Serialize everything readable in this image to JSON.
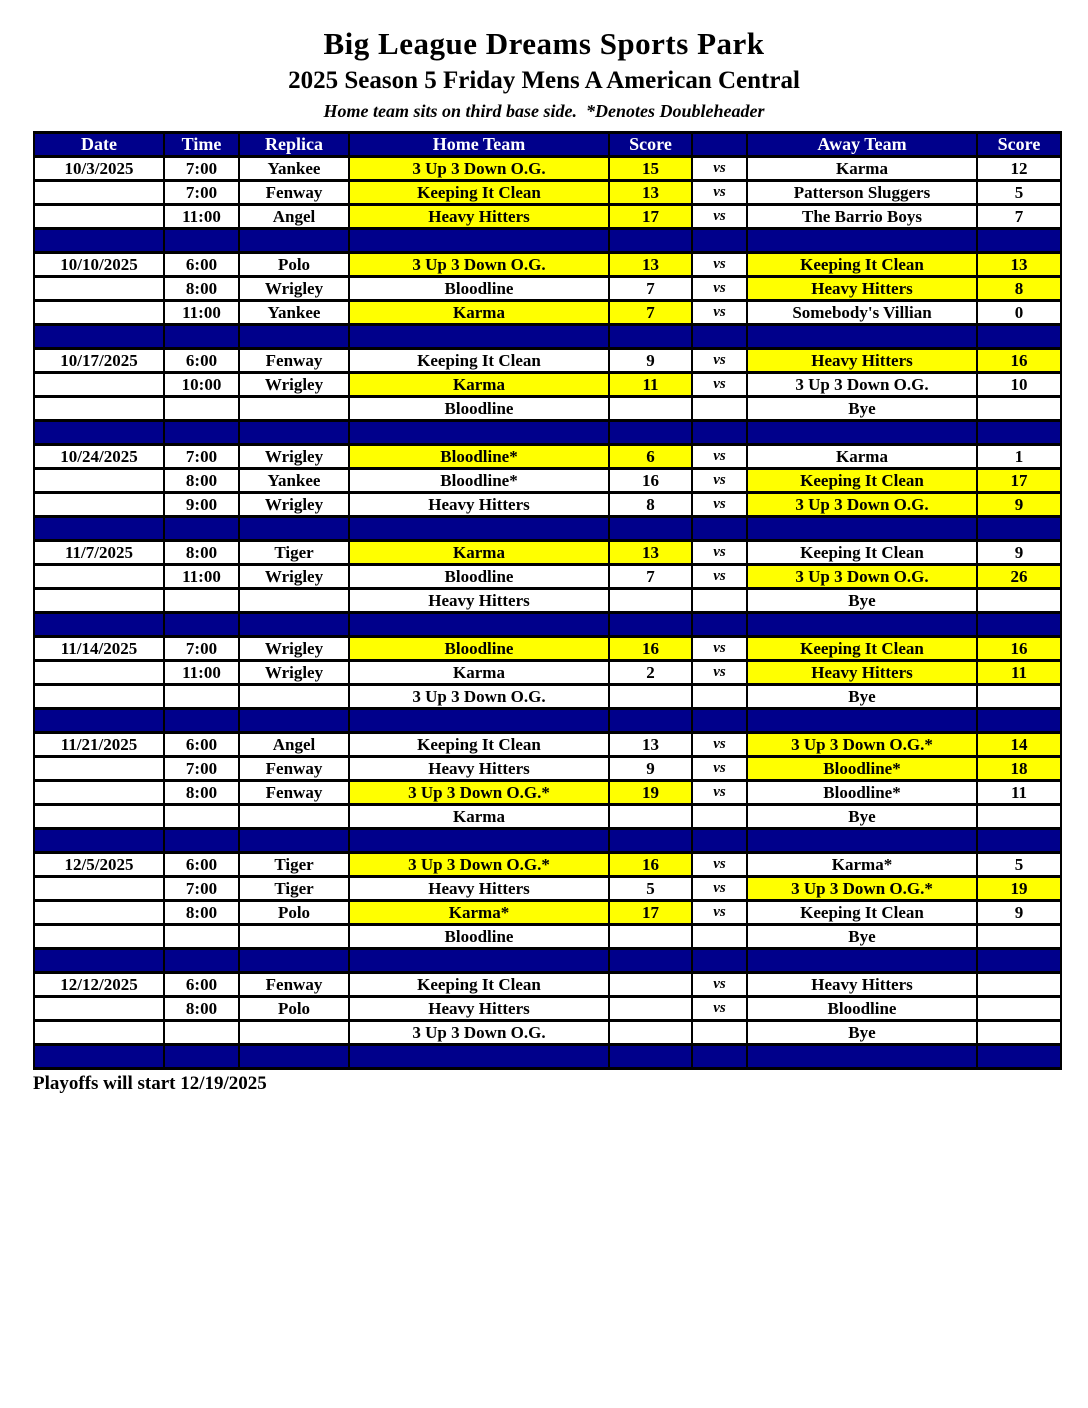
{
  "page": {
    "title": "Big League Dreams Sports Park",
    "subtitle": "2025 Season 5 Friday Mens A American Central",
    "note": "Home team sits on third base side.  *Denotes Doubleheader",
    "footer": "Playoffs will start 12/19/2025"
  },
  "colors": {
    "navy": "#00008B",
    "yellow": "#FFFF00",
    "header_text": "#FFFFFF",
    "row_bg": "#FFFFFF",
    "border": "#000000",
    "body_text": "#000000"
  },
  "table": {
    "headers": [
      "Date",
      "Time",
      "Replica",
      "Home Team",
      "Score",
      "",
      "Away Team",
      "Score"
    ],
    "vs_label": "vs",
    "groups": [
      {
        "date": "10/3/2025",
        "games": [
          {
            "time": "7:00",
            "replica": "Yankee",
            "home": "3 Up 3 Down O.G.",
            "hs": "15",
            "vs": "vs",
            "away": "Karma",
            "as": "12",
            "hlh": true,
            "hla": false
          },
          {
            "time": "7:00",
            "replica": "Fenway",
            "home": "Keeping It Clean",
            "hs": "13",
            "vs": "vs",
            "away": "Patterson Sluggers",
            "as": "5",
            "hlh": true,
            "hla": false
          },
          {
            "time": "11:00",
            "replica": "Angel",
            "home": "Heavy Hitters",
            "hs": "17",
            "vs": "vs",
            "away": "The Barrio Boys",
            "as": "7",
            "hlh": true,
            "hla": false
          }
        ]
      },
      {
        "date": "10/10/2025",
        "games": [
          {
            "time": "6:00",
            "replica": "Polo",
            "home": "3 Up 3 Down O.G.",
            "hs": "13",
            "vs": "vs",
            "away": "Keeping It Clean",
            "as": "13",
            "hlh": true,
            "hla": true
          },
          {
            "time": "8:00",
            "replica": "Wrigley",
            "home": "Bloodline",
            "hs": "7",
            "vs": "vs",
            "away": "Heavy Hitters",
            "as": "8",
            "hlh": false,
            "hla": true
          },
          {
            "time": "11:00",
            "replica": "Yankee",
            "home": "Karma",
            "hs": "7",
            "vs": "vs",
            "away": "Somebody's Villian",
            "as": "0",
            "hlh": true,
            "hla": false
          }
        ]
      },
      {
        "date": "10/17/2025",
        "games": [
          {
            "time": "6:00",
            "replica": "Fenway",
            "home": "Keeping It Clean",
            "hs": "9",
            "vs": "vs",
            "away": "Heavy Hitters",
            "as": "16",
            "hlh": false,
            "hla": true
          },
          {
            "time": "10:00",
            "replica": "Wrigley",
            "home": "Karma",
            "hs": "11",
            "vs": "vs",
            "away": "3 Up 3 Down O.G.",
            "as": "10",
            "hlh": true,
            "hla": false
          },
          {
            "time": "",
            "replica": "",
            "home": "Bloodline",
            "hs": "",
            "vs": "",
            "away": "Bye",
            "as": "",
            "hlh": false,
            "hla": false
          }
        ]
      },
      {
        "date": "10/24/2025",
        "games": [
          {
            "time": "7:00",
            "replica": "Wrigley",
            "home": "Bloodline*",
            "hs": "6",
            "vs": "vs",
            "away": "Karma",
            "as": "1",
            "hlh": true,
            "hla": false
          },
          {
            "time": "8:00",
            "replica": "Yankee",
            "home": "Bloodline*",
            "hs": "16",
            "vs": "vs",
            "away": "Keeping It Clean",
            "as": "17",
            "hlh": false,
            "hla": true
          },
          {
            "time": "9:00",
            "replica": "Wrigley",
            "home": "Heavy Hitters",
            "hs": "8",
            "vs": "vs",
            "away": "3 Up 3 Down O.G.",
            "as": "9",
            "hlh": false,
            "hla": true
          }
        ]
      },
      {
        "date": "11/7/2025",
        "games": [
          {
            "time": "8:00",
            "replica": "Tiger",
            "home": "Karma",
            "hs": "13",
            "vs": "vs",
            "away": "Keeping It Clean",
            "as": "9",
            "hlh": true,
            "hla": false
          },
          {
            "time": "11:00",
            "replica": "Wrigley",
            "home": "Bloodline",
            "hs": "7",
            "vs": "vs",
            "away": "3 Up 3 Down O.G.",
            "as": "26",
            "hlh": false,
            "hla": true
          },
          {
            "time": "",
            "replica": "",
            "home": "Heavy Hitters",
            "hs": "",
            "vs": "",
            "away": "Bye",
            "as": "",
            "hlh": false,
            "hla": false
          }
        ]
      },
      {
        "date": "11/14/2025",
        "games": [
          {
            "time": "7:00",
            "replica": "Wrigley",
            "home": "Bloodline",
            "hs": "16",
            "vs": "vs",
            "away": "Keeping It Clean",
            "as": "16",
            "hlh": true,
            "hla": true
          },
          {
            "time": "11:00",
            "replica": "Wrigley",
            "home": "Karma",
            "hs": "2",
            "vs": "vs",
            "away": "Heavy Hitters",
            "as": "11",
            "hlh": false,
            "hla": true
          },
          {
            "time": "",
            "replica": "",
            "home": "3 Up 3 Down O.G.",
            "hs": "",
            "vs": "",
            "away": "Bye",
            "as": "",
            "hlh": false,
            "hla": false
          }
        ]
      },
      {
        "date": "11/21/2025",
        "games": [
          {
            "time": "6:00",
            "replica": "Angel",
            "home": "Keeping It Clean",
            "hs": "13",
            "vs": "vs",
            "away": "3 Up 3 Down O.G.*",
            "as": "14",
            "hlh": false,
            "hla": true
          },
          {
            "time": "7:00",
            "replica": "Fenway",
            "home": "Heavy Hitters",
            "hs": "9",
            "vs": "vs",
            "away": "Bloodline*",
            "as": "18",
            "hlh": false,
            "hla": true
          },
          {
            "time": "8:00",
            "replica": "Fenway",
            "home": "3 Up 3 Down O.G.*",
            "hs": "19",
            "vs": "vs",
            "away": "Bloodline*",
            "as": "11",
            "hlh": true,
            "hla": false
          },
          {
            "time": "",
            "replica": "",
            "home": "Karma",
            "hs": "",
            "vs": "",
            "away": "Bye",
            "as": "",
            "hlh": false,
            "hla": false
          }
        ]
      },
      {
        "date": "12/5/2025",
        "games": [
          {
            "time": "6:00",
            "replica": "Tiger",
            "home": "3 Up 3 Down O.G.*",
            "hs": "16",
            "vs": "vs",
            "away": "Karma*",
            "as": "5",
            "hlh": true,
            "hla": false
          },
          {
            "time": "7:00",
            "replica": "Tiger",
            "home": "Heavy Hitters",
            "hs": "5",
            "vs": "vs",
            "away": "3 Up 3 Down O.G.*",
            "as": "19",
            "hlh": false,
            "hla": true
          },
          {
            "time": "8:00",
            "replica": "Polo",
            "home": "Karma*",
            "hs": "17",
            "vs": "vs",
            "away": "Keeping It Clean",
            "as": "9",
            "hlh": true,
            "hla": false
          },
          {
            "time": "",
            "replica": "",
            "home": "Bloodline",
            "hs": "",
            "vs": "",
            "away": "Bye",
            "as": "",
            "hlh": false,
            "hla": false
          }
        ]
      },
      {
        "date": "12/12/2025",
        "games": [
          {
            "time": "6:00",
            "replica": "Fenway",
            "home": "Keeping It Clean",
            "hs": "",
            "vs": "vs",
            "away": "Heavy Hitters",
            "as": "",
            "hlh": false,
            "hla": false
          },
          {
            "time": "8:00",
            "replica": "Polo",
            "home": "Heavy Hitters",
            "hs": "",
            "vs": "vs",
            "away": "Bloodline",
            "as": "",
            "hlh": false,
            "hla": false
          },
          {
            "time": "",
            "replica": "",
            "home": "3 Up 3 Down O.G.",
            "hs": "",
            "vs": "",
            "away": "Bye",
            "as": "",
            "hlh": false,
            "hla": false
          }
        ]
      }
    ]
  }
}
